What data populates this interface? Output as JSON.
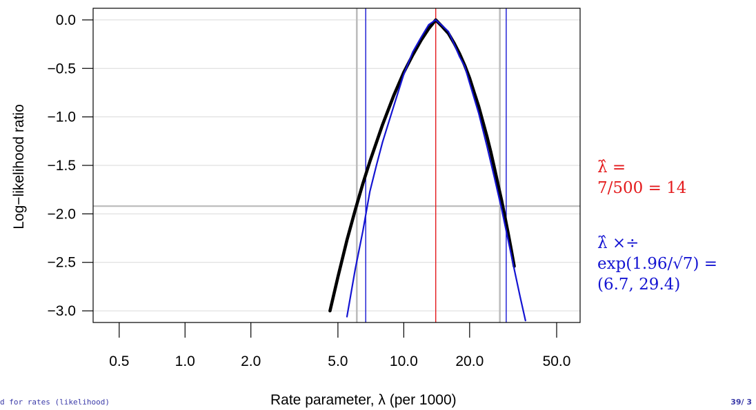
{
  "chart_data": {
    "type": "line",
    "xlabel": "Rate parameter, λ (per 1000)",
    "ylabel": "Log−likelihood ratio",
    "x_scale": "log",
    "xlim": [
      0.38,
      64
    ],
    "ylim": [
      -3.12,
      0.12
    ],
    "x_ticks": [
      0.5,
      1.0,
      2.0,
      5.0,
      10.0,
      20.0,
      50.0
    ],
    "x_tick_labels": [
      "0.5",
      "1.0",
      "2.0",
      "5.0",
      "10.0",
      "20.0",
      "50.0"
    ],
    "y_ticks": [
      0.0,
      -0.5,
      -1.0,
      -1.5,
      -2.0,
      -2.5,
      -3.0
    ],
    "y_tick_labels": [
      "0.0",
      "−0.5",
      "−1.0",
      "−1.5",
      "−2.0",
      "−2.5",
      "−3.0"
    ],
    "grid": "horizontal",
    "series": [
      {
        "color": "#000000",
        "x": [
          4.6,
          5.0,
          5.5,
          6.0,
          6.5,
          7.0,
          8.0,
          9.0,
          10.0,
          11.0,
          12.0,
          13.0,
          14.0,
          15.0,
          16.0,
          17.0,
          18.0,
          19.0,
          20.0,
          21.0,
          22.0,
          23.0,
          24.0,
          25.0,
          26.0,
          27.0,
          28.0,
          29.0,
          30.0,
          31.0,
          32.0
        ],
        "y": [
          -3.0,
          -2.65,
          -2.27,
          -1.96,
          -1.69,
          -1.46,
          -1.08,
          -0.78,
          -0.54,
          -0.36,
          -0.21,
          -0.09,
          0.0,
          -0.07,
          -0.14,
          -0.24,
          -0.35,
          -0.47,
          -0.6,
          -0.75,
          -0.89,
          -1.05,
          -1.2,
          -1.36,
          -1.53,
          -1.7,
          -1.86,
          -2.03,
          -2.2,
          -2.37,
          -2.54
        ]
      },
      {
        "color": "#1414d2",
        "x": [
          5.5,
          6.0,
          6.5,
          7.0,
          7.5,
          8.0,
          9.0,
          10.0,
          11.0,
          12.0,
          13.0,
          14.0,
          15.0,
          16.0,
          17.0,
          18.0,
          19.0,
          20.0,
          22.0,
          24.0,
          26.0,
          28.0,
          30.0,
          32.0,
          34.0,
          36.0
        ],
        "y": [
          -3.06,
          -2.57,
          -2.18,
          -1.77,
          -1.5,
          -1.26,
          -0.89,
          -0.56,
          -0.33,
          -0.18,
          -0.05,
          0.0,
          -0.06,
          -0.12,
          -0.25,
          -0.38,
          -0.48,
          -0.65,
          -0.96,
          -1.3,
          -1.63,
          -1.95,
          -2.27,
          -2.57,
          -2.85,
          -3.1
        ]
      }
    ],
    "reference_lines": {
      "horizontal": [
        {
          "y": -1.92,
          "color": "#bdbdbd"
        }
      ],
      "vertical": [
        {
          "x": 14.0,
          "color": "#e41a1c"
        },
        {
          "x": 6.7,
          "color": "#1414d2"
        },
        {
          "x": 29.4,
          "color": "#1414d2"
        },
        {
          "x": 6.1,
          "color": "#bdbdbd"
        },
        {
          "x": 27.5,
          "color": "#bdbdbd"
        }
      ]
    }
  },
  "annotations": {
    "estimate_line1": "λ̂ =",
    "estimate_line2": "7/500 = 14",
    "ci_line1": "λ̂ ×÷",
    "ci_line2": "exp(1.96/√7) =",
    "ci_line3": "(6.7, 29.4)"
  },
  "footer": {
    "left": "d for rates (likelihood)",
    "right": "39/ 3"
  },
  "colors": {
    "red": "#e41a1c",
    "blue": "#1414d2",
    "grey": "#bdbdbd",
    "grid": "#d9d9d9",
    "curve": "#000000"
  }
}
